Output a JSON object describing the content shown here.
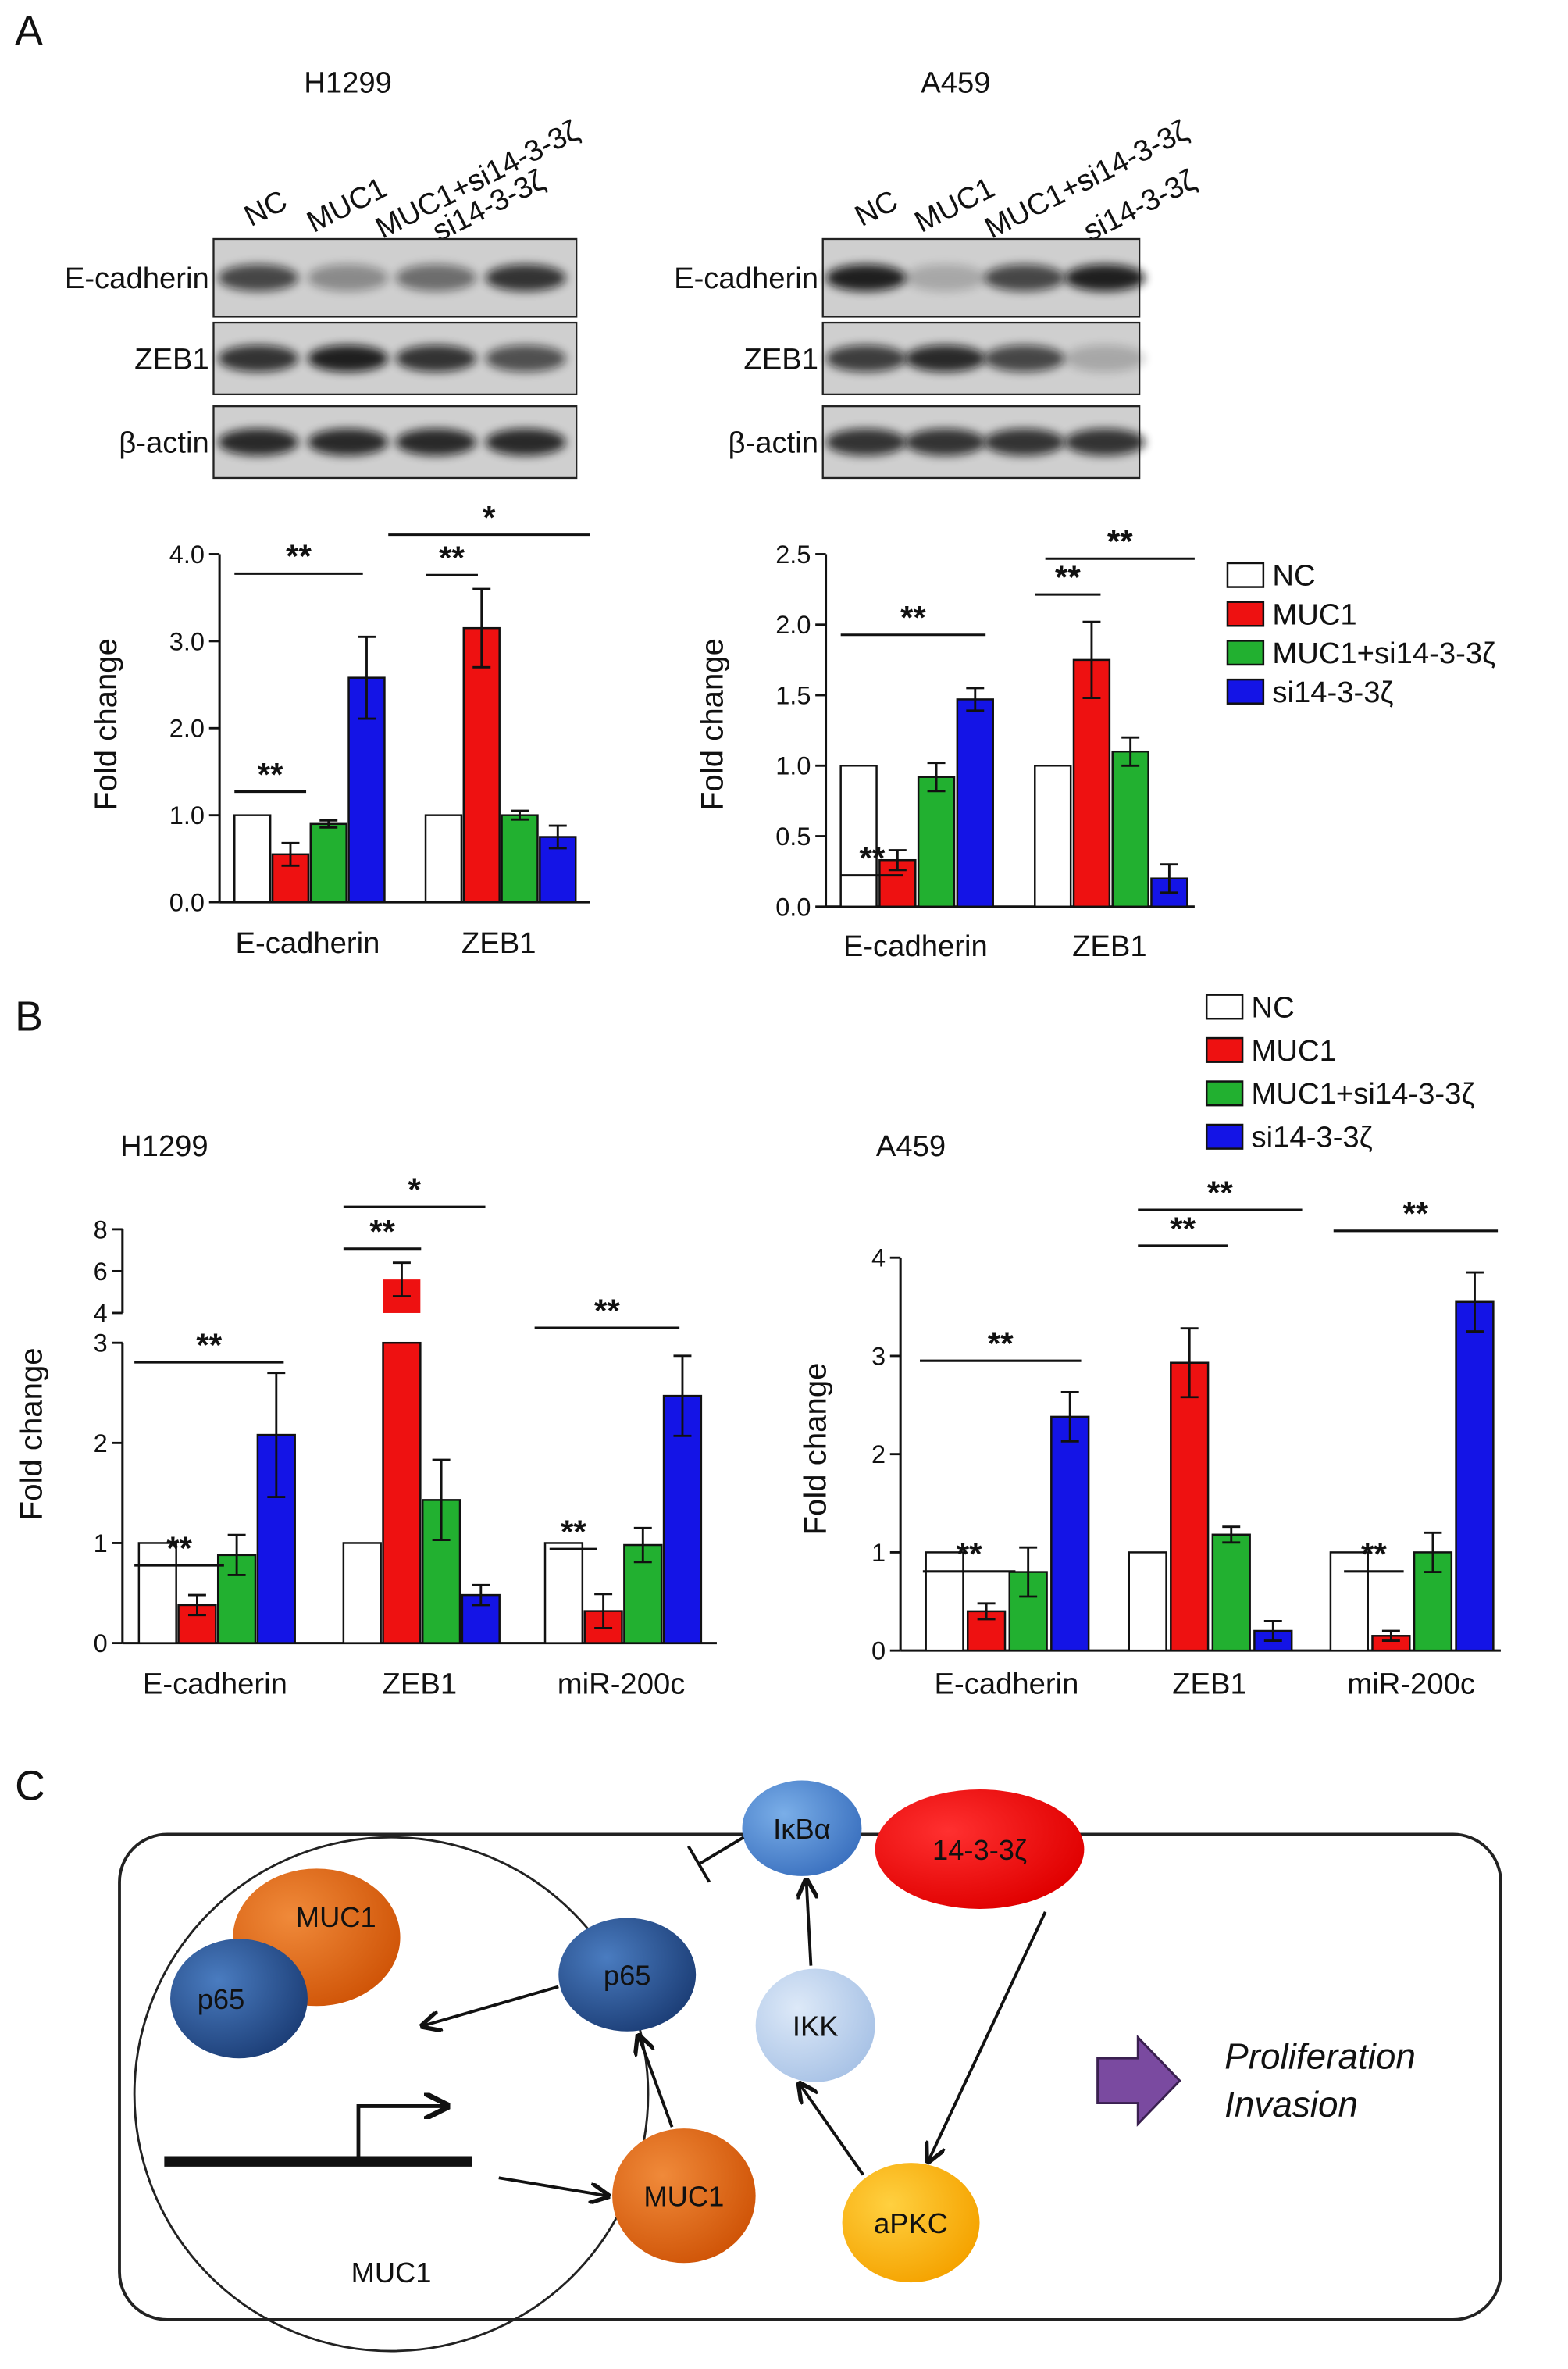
{
  "panels": [
    "A",
    "B",
    "C"
  ],
  "blots": [
    {
      "title": "H1299",
      "lanes": [
        "NC",
        "MUC1",
        "MUC1+si14-3-3ζ",
        "si14-3-3ζ"
      ],
      "rows": [
        "E-cadherin",
        "ZEB1",
        "β-actin"
      ]
    },
    {
      "title": "A459",
      "lanes": [
        "NC",
        "MUC1",
        "MUC1+si14-3-3ζ",
        "si14-3-3ζ"
      ],
      "rows": [
        "E-cadherin",
        "ZEB1",
        "β-actin"
      ]
    }
  ],
  "chart_data": [
    {
      "type": "bar",
      "ylabel": "Fold change",
      "categories": [
        "E-cadherin",
        "ZEB1"
      ],
      "series": [
        {
          "name": "NC",
          "color": "#ffffff",
          "values": [
            1,
            1
          ]
        },
        {
          "name": "MUC1",
          "color": "#ee1111",
          "values": [
            0.55,
            3.15
          ],
          "errors": [
            0.13,
            0.45
          ]
        },
        {
          "name": "MUC1+si14-3-3ζ",
          "color": "#22b030",
          "values": [
            0.9,
            1.0
          ],
          "errors": [
            0.04,
            0.05
          ]
        },
        {
          "name": "si14-3-3ζ",
          "color": "#1414e6",
          "values": [
            2.58,
            0.75
          ],
          "errors": [
            0.47,
            0.13
          ]
        }
      ],
      "ylim": [
        0,
        4
      ],
      "yticks": [
        {
          "value": 0,
          "label": "0.0"
        },
        {
          "value": 1,
          "label": "1.0"
        },
        {
          "value": 2,
          "label": "2.0"
        },
        {
          "value": 3,
          "label": "3.0"
        },
        {
          "value": 4,
          "label": "4.0"
        }
      ],
      "annotations": [
        "**",
        "**",
        "**",
        "*"
      ]
    },
    {
      "type": "bar",
      "ylabel": "Fold change",
      "categories": [
        "E-cadherin",
        "ZEB1"
      ],
      "series": [
        {
          "name": "NC",
          "color": "#ffffff",
          "values": [
            1,
            1
          ]
        },
        {
          "name": "MUC1",
          "color": "#ee1111",
          "values": [
            0.33,
            1.75
          ],
          "errors": [
            0.07,
            0.27
          ]
        },
        {
          "name": "MUC1+si14-3-3ζ",
          "color": "#22b030",
          "values": [
            0.92,
            1.1
          ],
          "errors": [
            0.1,
            0.1
          ]
        },
        {
          "name": "si14-3-3ζ",
          "color": "#1414e6",
          "values": [
            1.47,
            0.2
          ],
          "errors": [
            0.08,
            0.1
          ]
        }
      ],
      "ylim": [
        0,
        2.5
      ],
      "yticks": [
        {
          "value": 0,
          "label": "0.0"
        },
        0.5,
        {
          "value": 1,
          "label": "1.0"
        },
        1.5,
        {
          "value": 2,
          "label": "2.0"
        },
        2.5
      ],
      "annotations": [
        "**",
        "**",
        "**",
        "**"
      ],
      "legend": "right"
    },
    {
      "type": "bar",
      "title": "H1299",
      "ylabel": "Fold change",
      "categories": [
        "E-cadherin",
        "ZEB1",
        "miR-200c"
      ],
      "series": [
        {
          "name": "NC",
          "color": "#ffffff",
          "values": [
            1,
            1,
            1
          ]
        },
        {
          "name": "MUC1",
          "color": "#ee1111",
          "values": [
            0.38,
            5.6,
            0.32
          ],
          "errors": [
            0.1,
            0.8,
            0.17
          ]
        },
        {
          "name": "MUC1+si14-3-3ζ",
          "color": "#22b030",
          "values": [
            0.88,
            1.43,
            0.98
          ],
          "errors": [
            0.2,
            0.4,
            0.17
          ]
        },
        {
          "name": "si14-3-3ζ",
          "color": "#1414e6",
          "values": [
            2.08,
            0.48,
            2.47
          ],
          "errors": [
            0.62,
            0.1,
            0.4
          ]
        }
      ],
      "ylim": [
        0,
        8
      ],
      "ybreak": [
        3,
        4
      ],
      "yticks": [
        0,
        1,
        2,
        3,
        4,
        6,
        8
      ],
      "annotations": [
        "**",
        "**",
        "**",
        "*",
        "**",
        "**"
      ]
    },
    {
      "type": "bar",
      "title": "A459",
      "ylabel": "Fold change",
      "categories": [
        "E-cadherin",
        "ZEB1",
        "miR-200c"
      ],
      "series": [
        {
          "name": "NC",
          "color": "#ffffff",
          "values": [
            1,
            1,
            1
          ]
        },
        {
          "name": "MUC1",
          "color": "#ee1111",
          "values": [
            0.4,
            2.93,
            0.15
          ],
          "errors": [
            0.08,
            0.35,
            0.05
          ]
        },
        {
          "name": "MUC1+si14-3-3ζ",
          "color": "#22b030",
          "values": [
            0.8,
            1.18,
            1.0
          ],
          "errors": [
            0.25,
            0.08,
            0.2
          ]
        },
        {
          "name": "si14-3-3ζ",
          "color": "#1414e6",
          "values": [
            2.38,
            0.2,
            3.55
          ],
          "errors": [
            0.25,
            0.1,
            0.3
          ]
        }
      ],
      "ylim": [
        0,
        4
      ],
      "yticks": [
        0,
        1,
        2,
        3,
        4
      ],
      "annotations": [
        "**",
        "**",
        "**",
        "**",
        "**",
        "**"
      ],
      "legend": "top-right"
    }
  ],
  "diagram": {
    "nodes": [
      "MUC1",
      "p65",
      "p65",
      "IκBα",
      "14-3-3ζ",
      "IKK",
      "MUC1",
      "aPKC"
    ],
    "gene": "MUC1",
    "outcomes": [
      "Proliferation",
      "Invasion"
    ]
  }
}
